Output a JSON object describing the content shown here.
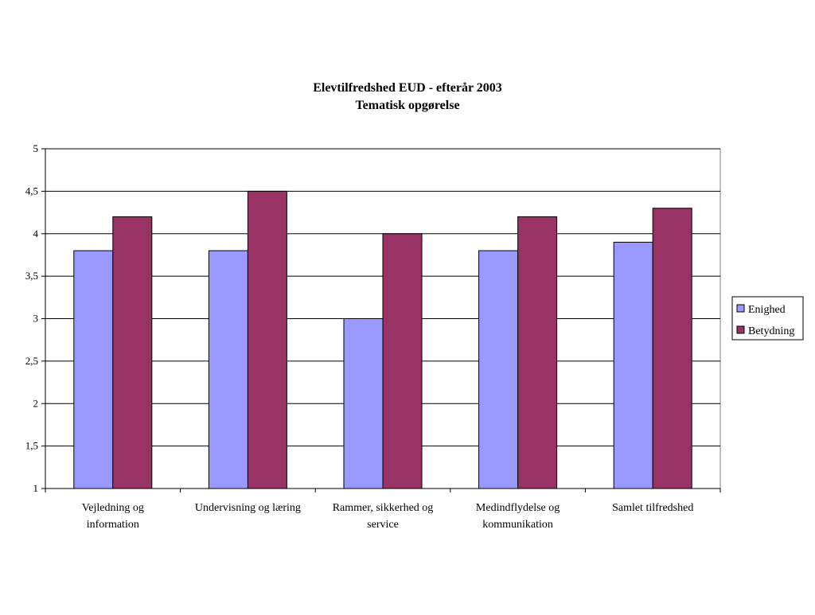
{
  "chart_data": {
    "type": "bar",
    "title": "Elevtilfredshed EUD - efterår 2003",
    "subtitle": "Tematisk opgørelse",
    "categories": [
      [
        "Vejledning og",
        "information"
      ],
      [
        "Undervisning og læring"
      ],
      [
        "Rammer, sikkerhed og",
        "service"
      ],
      [
        "Medindflydelse og",
        "kommunikation"
      ],
      [
        "Samlet tilfredshed"
      ]
    ],
    "series": [
      {
        "name": "Enighed",
        "color": "#9999ff",
        "values": [
          3.8,
          3.8,
          3.0,
          3.8,
          3.9
        ]
      },
      {
        "name": "Betydning",
        "color": "#993366",
        "values": [
          4.2,
          4.5,
          4.0,
          4.2,
          4.3
        ]
      }
    ],
    "yticks": [
      "1",
      "1,5",
      "2",
      "2,5",
      "3",
      "3,5",
      "4",
      "4,5",
      "5"
    ],
    "ylim": [
      1,
      5
    ],
    "grid": true,
    "legend_position": "right"
  }
}
